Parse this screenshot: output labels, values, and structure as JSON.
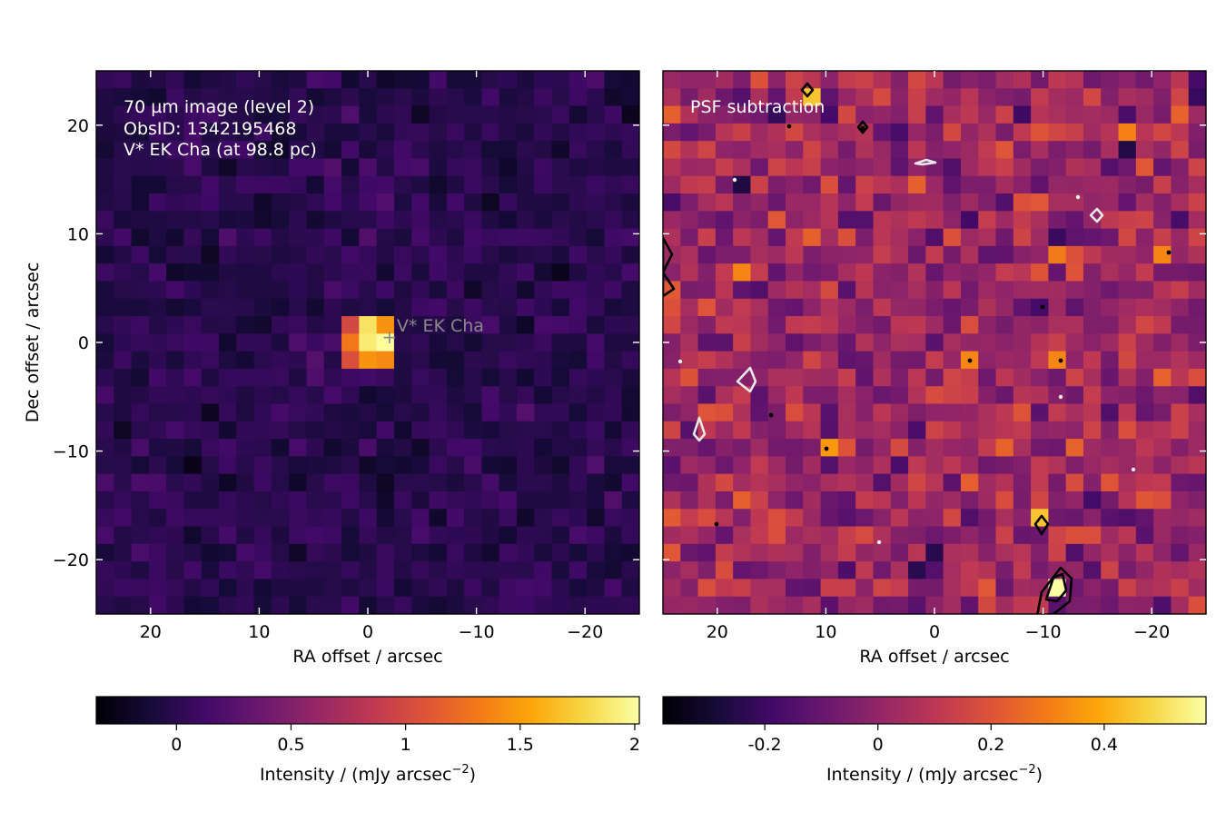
{
  "chart_data": [
    {
      "type": "heatmap",
      "panel": "left",
      "annotation_lines": [
        "70 µm image (level 2)",
        "ObsID: 1342195468",
        "V* EK Cha (at 98.8 pc)"
      ],
      "source_label": "V* EK Cha",
      "source_marker": "+",
      "source_position": [
        -2,
        0.5
      ],
      "xlabel": "RA offset / arcsec",
      "ylabel": "Dec offset / arcsec",
      "xlim": [
        25,
        -25
      ],
      "ylim": [
        -25,
        25
      ],
      "xticks": [
        20,
        10,
        0,
        -10,
        -20
      ],
      "xtick_labels": [
        "20",
        "10",
        "0",
        "−10",
        "−20"
      ],
      "yticks": [
        20,
        10,
        0,
        -10,
        -20
      ],
      "ytick_labels": [
        "20",
        "10",
        "0",
        "−10",
        "−20"
      ],
      "grid": false,
      "colormap": "inferno",
      "value_range": [
        -0.35,
        2.02
      ],
      "background_level": 0.0,
      "background_scatter": 0.12,
      "peak": {
        "x": -0.5,
        "y": 0.0,
        "value": 2.0
      },
      "peak_pixels": [
        {
          "x": 0.0,
          "y": 2.0,
          "value": 1.85
        },
        {
          "x": -2.0,
          "y": 2.0,
          "value": 1.45
        },
        {
          "x": 2.0,
          "y": 2.0,
          "value": 1.0
        },
        {
          "x": -2.0,
          "y": 0.0,
          "value": 2.0
        },
        {
          "x": 0.0,
          "y": 0.0,
          "value": 1.9
        },
        {
          "x": 2.0,
          "y": 0.0,
          "value": 1.3
        },
        {
          "x": 0.0,
          "y": -2.0,
          "value": 1.45
        },
        {
          "x": -2.0,
          "y": -2.0,
          "value": 1.4
        },
        {
          "x": 2.0,
          "y": -2.0,
          "value": 1.05
        }
      ],
      "colorbar": {
        "label": "Intensity / (mJy arcsec",
        "label_exponent": "−2",
        "label_close": ")",
        "range": [
          -0.35,
          2.02
        ],
        "ticks": [
          0,
          0.5,
          1,
          1.5,
          2
        ],
        "tick_labels": [
          "0",
          "0.5",
          "1",
          "1.5",
          "2"
        ]
      }
    },
    {
      "type": "heatmap",
      "panel": "right",
      "annotation_lines": [
        "PSF subtraction"
      ],
      "xlabel": "RA offset / arcsec",
      "xlim": [
        25,
        -25
      ],
      "ylim": [
        -25,
        25
      ],
      "xticks": [
        20,
        10,
        0,
        -10,
        -20
      ],
      "xtick_labels": [
        "20",
        "10",
        "0",
        "−10",
        "−20"
      ],
      "grid": false,
      "colormap": "inferno",
      "value_range": [
        -0.38,
        0.58
      ],
      "background_level": 0.02,
      "background_scatter": 0.13,
      "bright_pixels": [
        {
          "x": -11.5,
          "y": -22.0,
          "value": 0.58
        },
        {
          "x": -10.0,
          "y": -16.5,
          "value": 0.45
        },
        {
          "x": 11.5,
          "y": 22.5,
          "value": 0.45
        },
        {
          "x": 17.5,
          "y": 7.0,
          "value": 0.32
        },
        {
          "x": -3.5,
          "y": -1.5,
          "value": 0.32
        },
        {
          "x": -11.5,
          "y": -1.5,
          "value": 0.32
        },
        {
          "x": -21.5,
          "y": 8.0,
          "value": 0.32
        },
        {
          "x": 10.0,
          "y": -9.5,
          "value": 0.36
        }
      ],
      "contour_levels": [
        {
          "color": "black",
          "meaning": "positive residual"
        },
        {
          "color": "white",
          "meaning": "negative residual"
        }
      ],
      "colorbar": {
        "label": "Intensity / (mJy arcsec",
        "label_exponent": "−2",
        "label_close": ")",
        "range": [
          -0.38,
          0.58
        ],
        "ticks": [
          -0.2,
          0,
          0.2,
          0.4
        ],
        "tick_labels": [
          "-0.2",
          "0",
          "0.2",
          "0.4"
        ]
      }
    }
  ]
}
